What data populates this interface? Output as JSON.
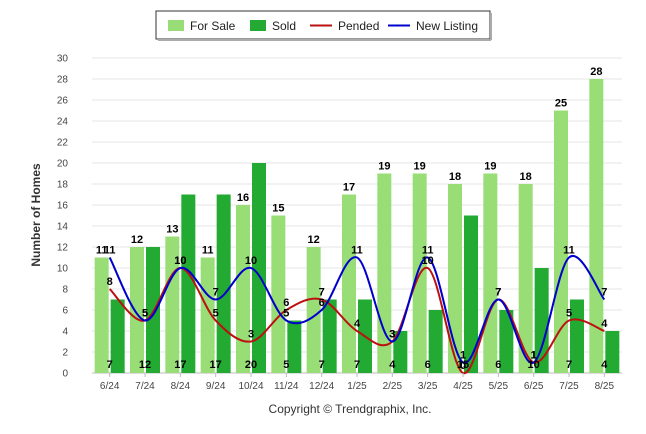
{
  "chart_data": {
    "type": "bar",
    "categories": [
      "6/24",
      "7/24",
      "8/24",
      "9/24",
      "10/24",
      "11/24",
      "12/24",
      "1/25",
      "2/25",
      "3/25",
      "4/25",
      "5/25",
      "6/25",
      "7/25",
      "8/25"
    ],
    "ylabel": "Number of Homes",
    "ylim": [
      0,
      30
    ],
    "yticks": [
      0,
      2,
      4,
      6,
      8,
      10,
      12,
      14,
      16,
      18,
      20,
      22,
      24,
      26,
      28,
      30
    ],
    "grid": true,
    "legend_position": "top-center",
    "series": [
      {
        "name": "For Sale",
        "kind": "bar",
        "color": "#99dd77",
        "values": [
          11,
          12,
          13,
          11,
          16,
          15,
          12,
          17,
          19,
          19,
          18,
          19,
          18,
          25,
          28
        ]
      },
      {
        "name": "Sold",
        "kind": "bar",
        "color": "#22aa33",
        "values": [
          7,
          12,
          17,
          17,
          20,
          5,
          7,
          7,
          4,
          6,
          15,
          6,
          10,
          7,
          4
        ]
      },
      {
        "name": "Pended",
        "kind": "line",
        "color": "#bb1111",
        "values": [
          8,
          5,
          10,
          5,
          3,
          6,
          7,
          4,
          3,
          10,
          0,
          7,
          1,
          5,
          4
        ]
      },
      {
        "name": "New Listing",
        "kind": "line",
        "color": "#0000cc",
        "values": [
          11,
          5,
          10,
          7,
          10,
          5,
          6,
          11,
          3,
          11,
          1,
          7,
          1,
          11,
          7
        ]
      }
    ]
  },
  "footer": "Copyright © Trendgraphix, Inc."
}
